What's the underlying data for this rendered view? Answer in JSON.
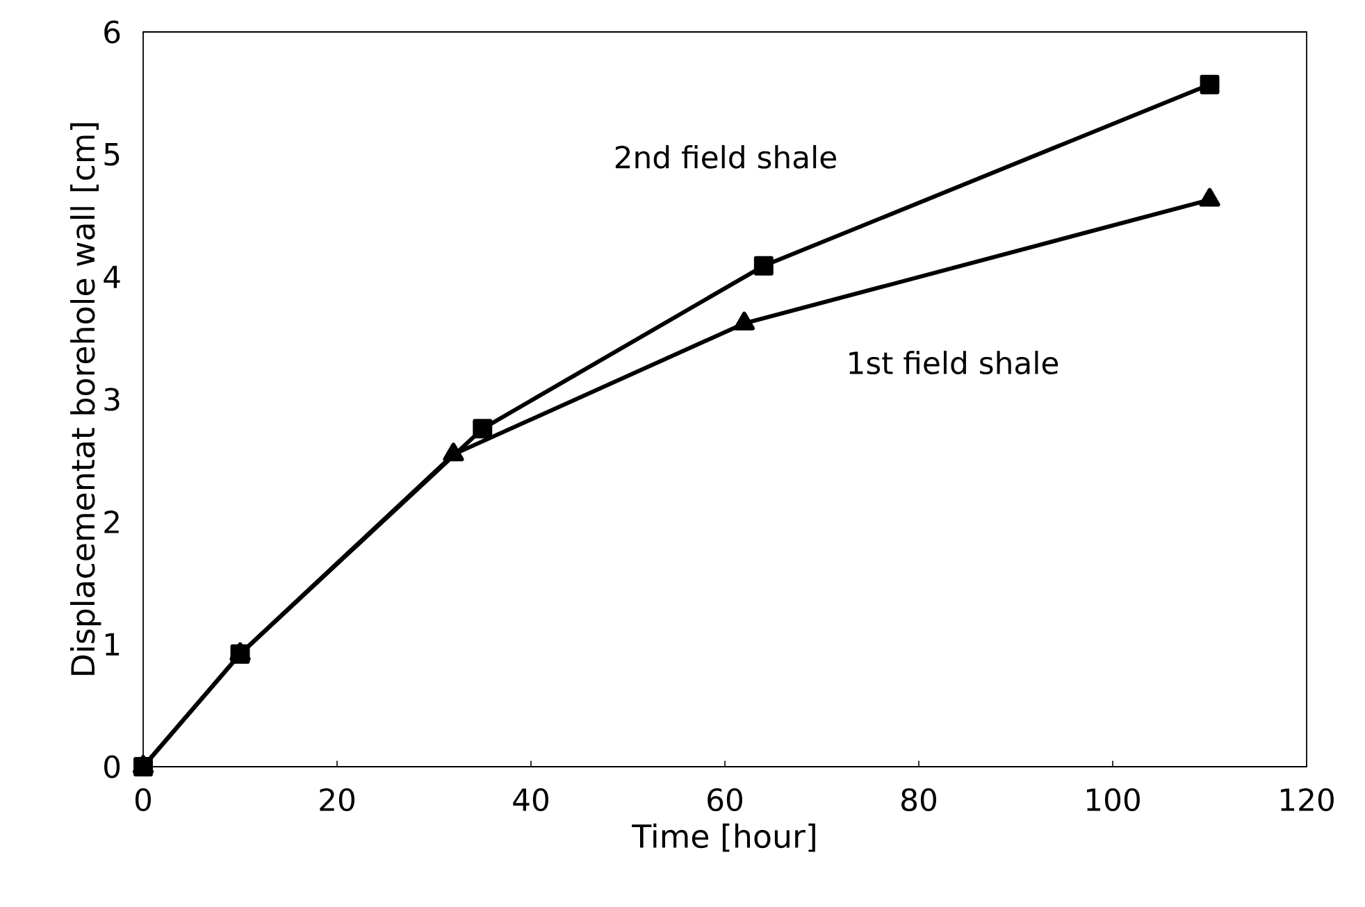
{
  "chart_data": {
    "type": "line",
    "xlabel": "Time [hour]",
    "ylabel": "Displacementat borehole wall [cm]",
    "xlim": [
      0,
      120
    ],
    "xticks": [
      0,
      20,
      40,
      60,
      80,
      100,
      120
    ],
    "ylim": [
      0,
      6
    ],
    "yticks": [
      0,
      1,
      2,
      3,
      4,
      5,
      6
    ],
    "grid": false,
    "legend": false,
    "line_style": "solid",
    "series": [
      {
        "name": "2nd field shale",
        "color": "#000000",
        "marker": "square",
        "x": [
          0,
          10,
          35,
          64,
          110
        ],
        "values": [
          0,
          0.92,
          2.76,
          4.09,
          5.57
        ]
      },
      {
        "name": "1st field shale",
        "color": "#000000",
        "marker": "triangle",
        "x": [
          0,
          10,
          32,
          62,
          110
        ],
        "values": [
          0,
          0.92,
          2.55,
          3.62,
          4.63
        ]
      }
    ]
  }
}
